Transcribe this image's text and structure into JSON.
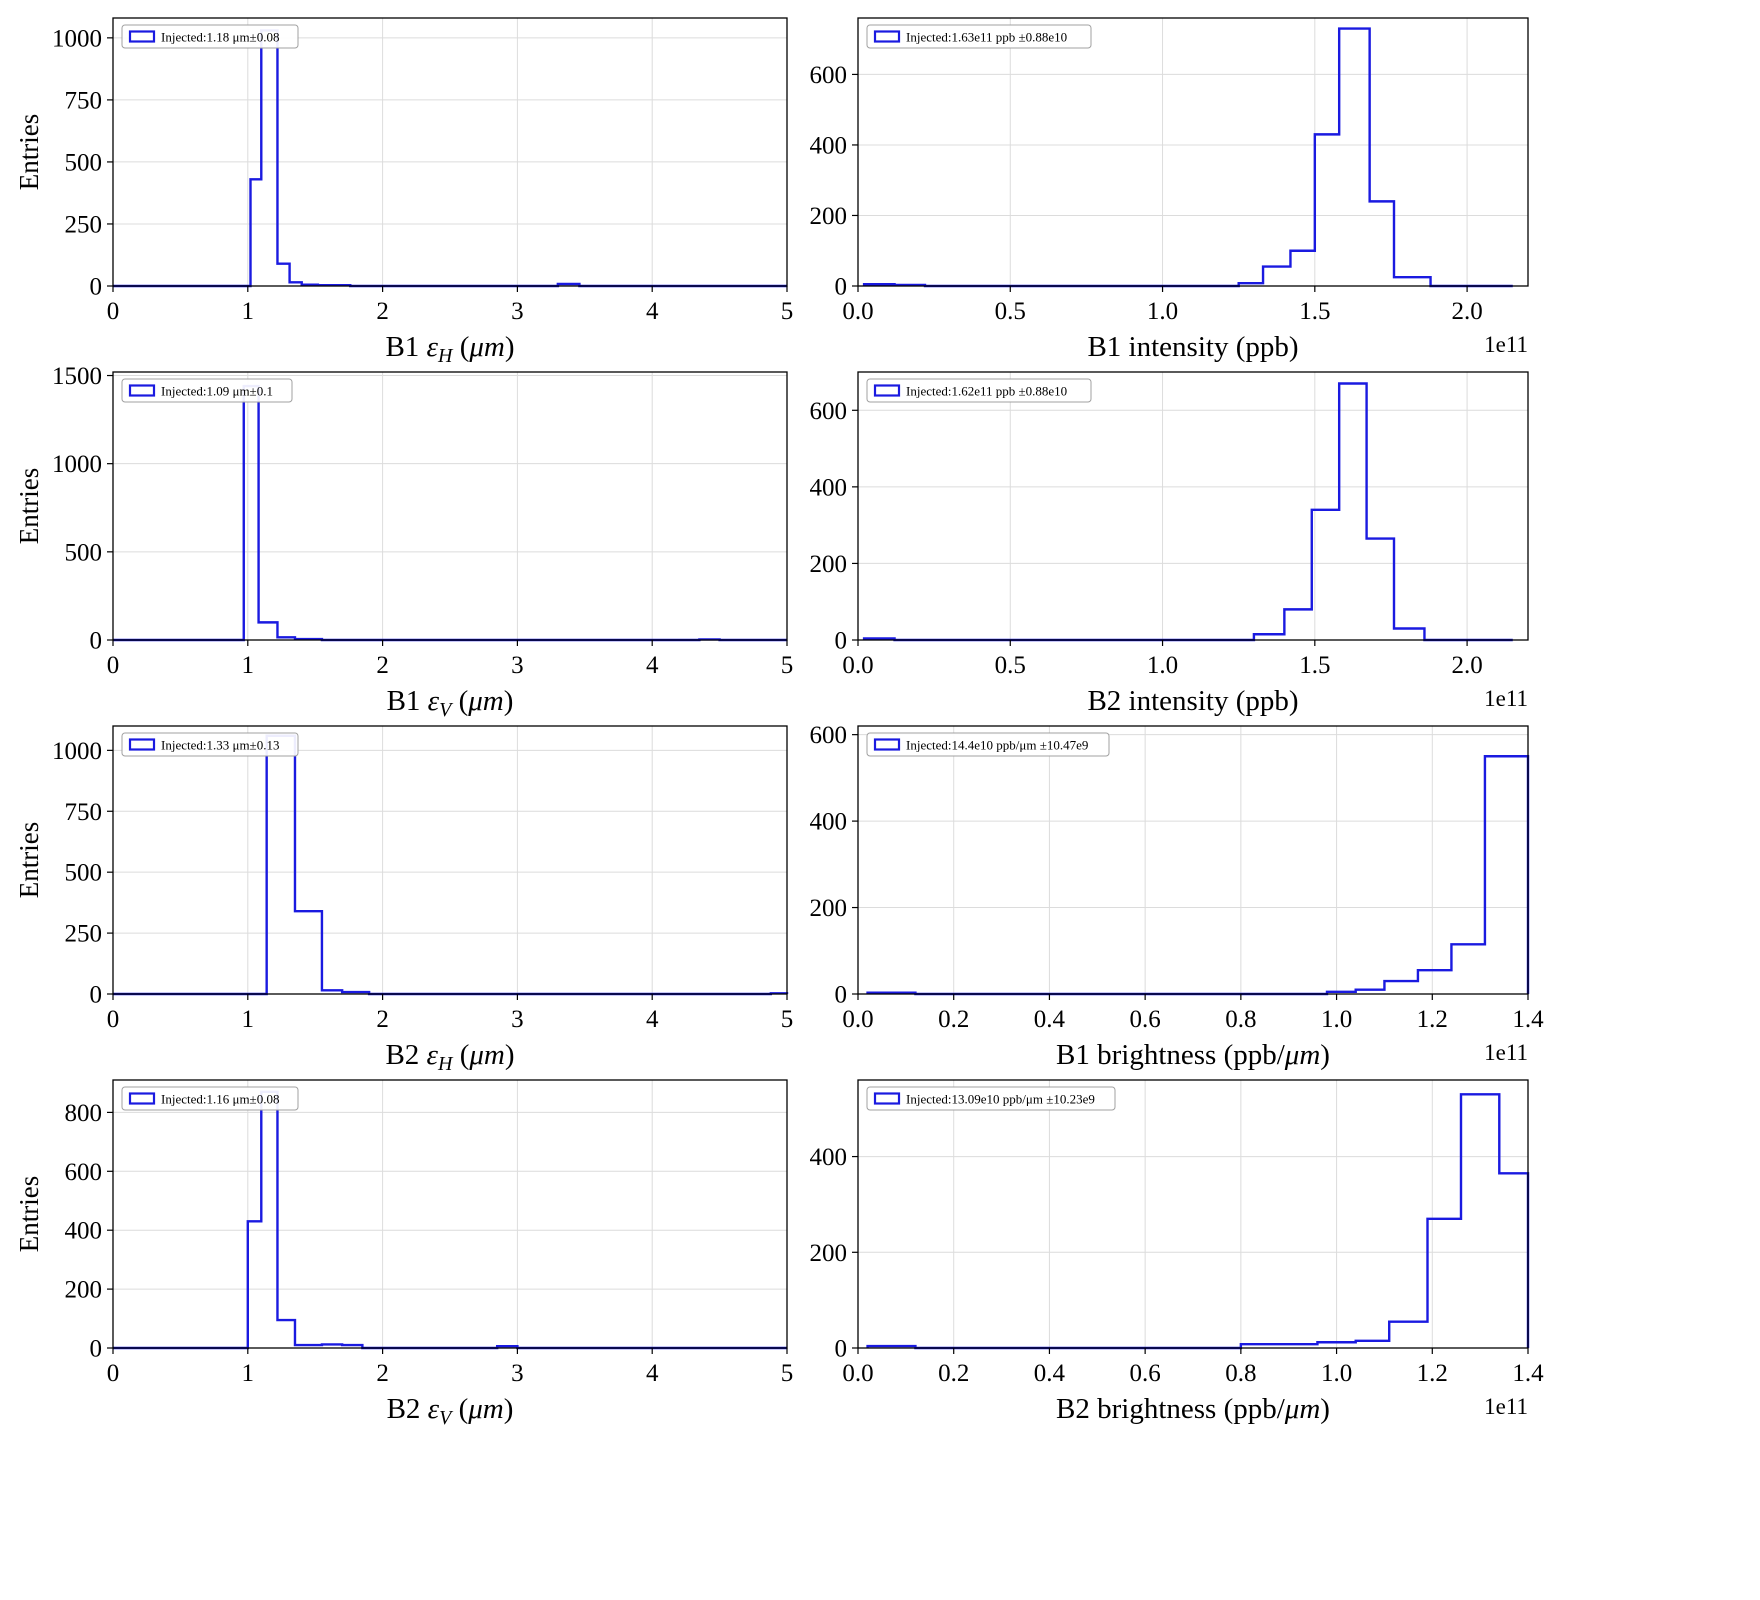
{
  "colors": {
    "hist": "#1a1ae0",
    "grid": "#dcdcdc",
    "spine": "#000000",
    "text": "#000000",
    "legend_border": "#a0a0a0",
    "background": "#ffffff"
  },
  "chart_data": [
    {
      "id": "b1-emittance-h",
      "type": "histogram",
      "ylabel": "Entries",
      "legend": "Injected:1.18 μm±0.08",
      "xlabel": [
        {
          "t": "B1 "
        },
        {
          "t": "ε",
          "i": true
        },
        {
          "t": "H",
          "i": true,
          "sub": true
        },
        {
          "t": " ("
        },
        {
          "t": "μm",
          "i": true
        },
        {
          "t": ")"
        }
      ],
      "xlim": [
        0,
        5
      ],
      "ylim": [
        0,
        1080
      ],
      "xticks": [
        0,
        1,
        2,
        3,
        4,
        5
      ],
      "xtick_labels": [
        "0",
        "1",
        "2",
        "3",
        "4",
        "5"
      ],
      "yticks": [
        0,
        250,
        500,
        750,
        1000
      ],
      "ytick_labels": [
        "0",
        "250",
        "500",
        "750",
        "1000"
      ],
      "offset": "",
      "edges": [
        0.0,
        1.02,
        1.1,
        1.22,
        1.31,
        1.4,
        1.52,
        1.76,
        3.3,
        3.46,
        5.0
      ],
      "counts": [
        0,
        430,
        1030,
        90,
        15,
        5,
        3,
        0,
        8,
        0
      ]
    },
    {
      "id": "b1-intensity",
      "type": "histogram",
      "ylabel": "",
      "legend": "Injected:1.63e11 ppb ±0.88e10",
      "xlabel": [
        {
          "t": "B1 intensity (ppb)"
        }
      ],
      "xlim": [
        0,
        2.2
      ],
      "ylim": [
        0,
        760
      ],
      "xticks": [
        0,
        0.5,
        1,
        1.5,
        2
      ],
      "xtick_labels": [
        "0.0",
        "0.5",
        "1.0",
        "1.5",
        "2.0"
      ],
      "yticks": [
        0,
        200,
        400,
        600
      ],
      "ytick_labels": [
        "0",
        "200",
        "400",
        "600"
      ],
      "offset": "1e11",
      "edges": [
        0.02,
        0.12,
        0.22,
        1.25,
        1.33,
        1.42,
        1.5,
        1.58,
        1.68,
        1.76,
        1.88,
        2.15
      ],
      "counts": [
        5,
        3,
        0,
        8,
        55,
        100,
        430,
        730,
        240,
        25,
        0
      ]
    },
    {
      "id": "b1-emittance-v",
      "type": "histogram",
      "ylabel": "Entries",
      "legend": "Injected:1.09 μm±0.1",
      "xlabel": [
        {
          "t": "B1 "
        },
        {
          "t": "ε",
          "i": true
        },
        {
          "t": "V",
          "i": true,
          "sub": true
        },
        {
          "t": " ("
        },
        {
          "t": "μm",
          "i": true
        },
        {
          "t": ")"
        }
      ],
      "xlim": [
        0,
        5
      ],
      "ylim": [
        0,
        1520
      ],
      "xticks": [
        0,
        1,
        2,
        3,
        4,
        5
      ],
      "xtick_labels": [
        "0",
        "1",
        "2",
        "3",
        "4",
        "5"
      ],
      "yticks": [
        0,
        500,
        1000,
        1500
      ],
      "ytick_labels": [
        "0",
        "500",
        "1000",
        "1500"
      ],
      "offset": "",
      "edges": [
        0.0,
        0.97,
        1.08,
        1.22,
        1.35,
        1.55,
        4.35,
        4.5,
        5.0
      ],
      "counts": [
        0,
        1440,
        100,
        15,
        5,
        0,
        3,
        0
      ]
    },
    {
      "id": "b2-intensity",
      "type": "histogram",
      "ylabel": "",
      "legend": "Injected:1.62e11 ppb ±0.88e10",
      "xlabel": [
        {
          "t": "B2 intensity (ppb)"
        }
      ],
      "xlim": [
        0,
        2.2
      ],
      "ylim": [
        0,
        700
      ],
      "xticks": [
        0,
        0.5,
        1,
        1.5,
        2
      ],
      "xtick_labels": [
        "0.0",
        "0.5",
        "1.0",
        "1.5",
        "2.0"
      ],
      "yticks": [
        0,
        200,
        400,
        600
      ],
      "ytick_labels": [
        "0",
        "200",
        "400",
        "600"
      ],
      "offset": "1e11",
      "edges": [
        0.02,
        0.12,
        1.3,
        1.4,
        1.49,
        1.58,
        1.67,
        1.76,
        1.86,
        2.15
      ],
      "counts": [
        4,
        0,
        15,
        80,
        340,
        670,
        265,
        30,
        0
      ]
    },
    {
      "id": "b2-emittance-h",
      "type": "histogram",
      "ylabel": "Entries",
      "legend": "Injected:1.33 μm±0.13",
      "xlabel": [
        {
          "t": "B2 "
        },
        {
          "t": "ε",
          "i": true
        },
        {
          "t": "H",
          "i": true,
          "sub": true
        },
        {
          "t": " ("
        },
        {
          "t": "μm",
          "i": true
        },
        {
          "t": ")"
        }
      ],
      "xlim": [
        0,
        5
      ],
      "ylim": [
        0,
        1100
      ],
      "xticks": [
        0,
        1,
        2,
        3,
        4,
        5
      ],
      "xtick_labels": [
        "0",
        "1",
        "2",
        "3",
        "4",
        "5"
      ],
      "yticks": [
        0,
        250,
        500,
        750,
        1000
      ],
      "ytick_labels": [
        "0",
        "250",
        "500",
        "750",
        "1000"
      ],
      "offset": "",
      "edges": [
        0.0,
        1.14,
        1.35,
        1.55,
        1.7,
        1.9,
        4.88,
        5.0
      ],
      "counts": [
        0,
        1060,
        340,
        15,
        8,
        0,
        3
      ]
    },
    {
      "id": "b1-brightness",
      "type": "histogram",
      "ylabel": "",
      "legend": "Injected:14.4e10 ppb/μm ±10.47e9",
      "xlabel": [
        {
          "t": "B1 brightness (ppb/"
        },
        {
          "t": "μm",
          "i": true
        },
        {
          "t": ")"
        }
      ],
      "xlim": [
        0,
        1.4
      ],
      "ylim": [
        0,
        620
      ],
      "xticks": [
        0,
        0.2,
        0.4,
        0.6,
        0.8,
        1.0,
        1.2,
        1.4
      ],
      "xtick_labels": [
        "0.0",
        "0.2",
        "0.4",
        "0.6",
        "0.8",
        "1.0",
        "1.2",
        "1.4"
      ],
      "yticks": [
        0,
        200,
        400,
        600
      ],
      "ytick_labels": [
        "0",
        "200",
        "400",
        "600"
      ],
      "offset": "1e11",
      "edges": [
        0.02,
        0.12,
        0.98,
        1.04,
        1.1,
        1.17,
        1.24,
        1.31,
        1.4
      ],
      "counts": [
        3,
        0,
        5,
        10,
        30,
        55,
        115,
        550
      ]
    },
    {
      "id": "b2-emittance-v",
      "type": "histogram",
      "ylabel": "Entries",
      "legend": "Injected:1.16 μm±0.08",
      "xlabel": [
        {
          "t": "B2 "
        },
        {
          "t": "ε",
          "i": true
        },
        {
          "t": "V",
          "i": true,
          "sub": true
        },
        {
          "t": " ("
        },
        {
          "t": "μm",
          "i": true
        },
        {
          "t": ")"
        }
      ],
      "xlim": [
        0,
        5
      ],
      "ylim": [
        0,
        910
      ],
      "xticks": [
        0,
        1,
        2,
        3,
        4,
        5
      ],
      "xtick_labels": [
        "0",
        "1",
        "2",
        "3",
        "4",
        "5"
      ],
      "yticks": [
        0,
        200,
        400,
        600,
        800
      ],
      "ytick_labels": [
        "0",
        "200",
        "400",
        "600",
        "800"
      ],
      "offset": "",
      "edges": [
        0.0,
        1.0,
        1.1,
        1.22,
        1.35,
        1.55,
        1.7,
        1.85,
        2.85,
        3.0,
        5.0
      ],
      "counts": [
        0,
        430,
        870,
        95,
        10,
        12,
        10,
        0,
        6,
        0
      ]
    },
    {
      "id": "b2-brightness",
      "type": "histogram",
      "ylabel": "",
      "legend": "Injected:13.09e10 ppb/μm ±10.23e9",
      "xlabel": [
        {
          "t": "B2 brightness (ppb/"
        },
        {
          "t": "μm",
          "i": true
        },
        {
          "t": ")"
        }
      ],
      "xlim": [
        0,
        1.4
      ],
      "ylim": [
        0,
        560
      ],
      "xticks": [
        0,
        0.2,
        0.4,
        0.6,
        0.8,
        1.0,
        1.2,
        1.4
      ],
      "xtick_labels": [
        "0.0",
        "0.2",
        "0.4",
        "0.6",
        "0.8",
        "1.0",
        "1.2",
        "1.4"
      ],
      "yticks": [
        0,
        200,
        400
      ],
      "ytick_labels": [
        "0",
        "200",
        "400"
      ],
      "offset": "1e11",
      "edges": [
        0.02,
        0.12,
        0.8,
        0.88,
        0.96,
        1.04,
        1.11,
        1.19,
        1.26,
        1.34,
        1.4
      ],
      "counts": [
        4,
        0,
        8,
        8,
        12,
        15,
        55,
        270,
        530,
        365
      ]
    }
  ]
}
